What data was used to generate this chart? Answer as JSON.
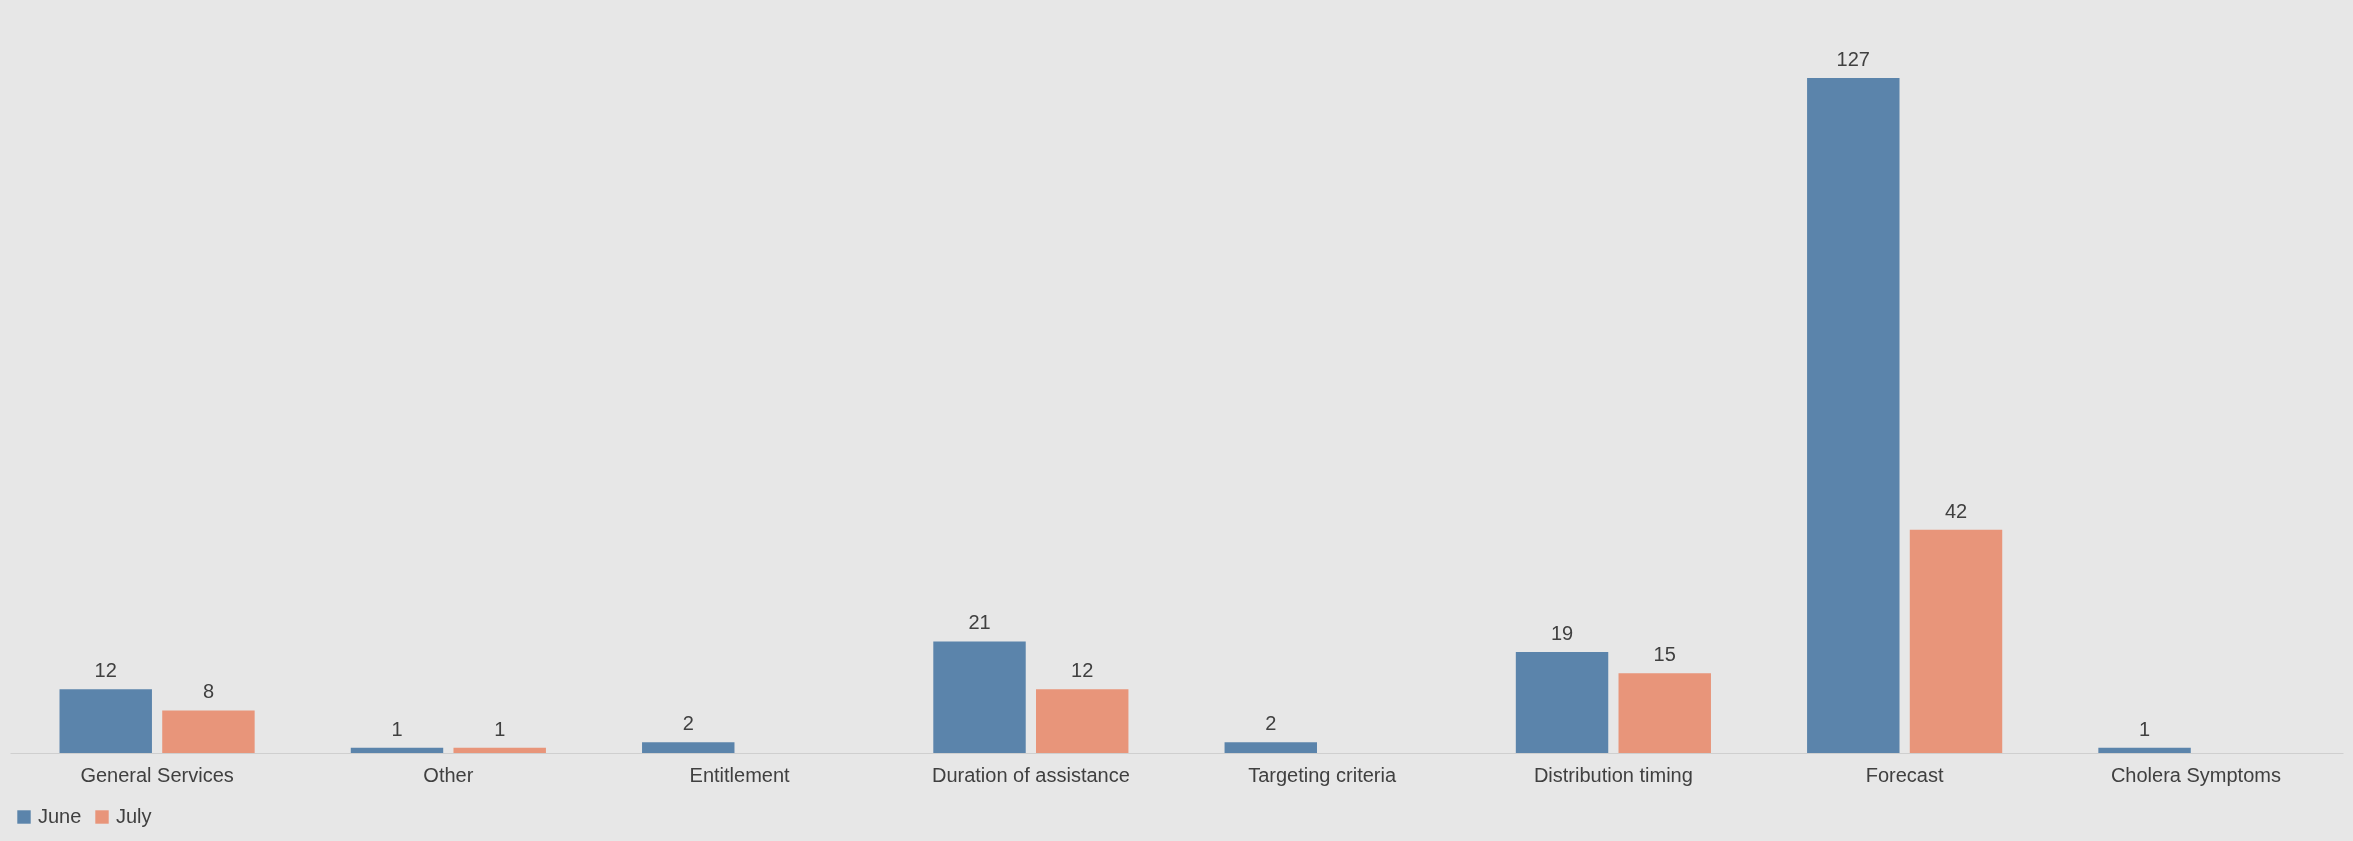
{
  "chart_data": {
    "type": "bar",
    "categories": [
      "General Services",
      "Other",
      "Entitlement",
      "Duration of assistance",
      "Targeting criteria",
      "Distribution timing",
      "Forecast",
      "Cholera Symptoms"
    ],
    "series": [
      {
        "name": "June",
        "color": "#5b84ab",
        "values": [
          12,
          1,
          2,
          21,
          2,
          19,
          127,
          1
        ]
      },
      {
        "name": "July",
        "color": "#e8957a",
        "values": [
          8,
          1,
          null,
          12,
          null,
          15,
          42,
          null
        ]
      }
    ],
    "data_labels": true,
    "legend": "bottom",
    "grid": false
  }
}
